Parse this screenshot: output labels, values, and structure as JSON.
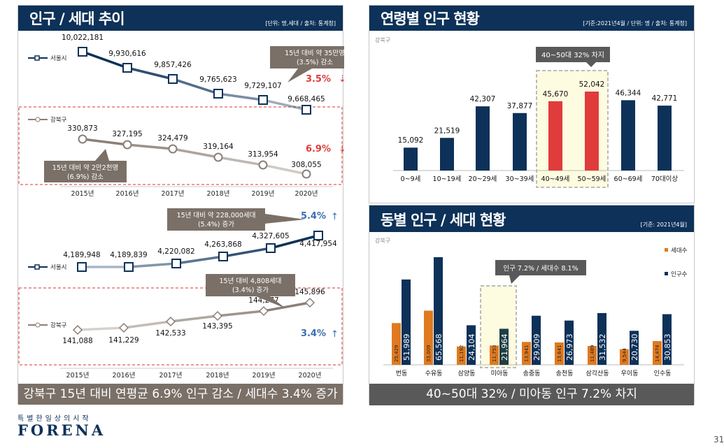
{
  "left_panel": {
    "title": "인구 / 세대 추이",
    "subtitle": "[단위: 명,세대 / 출처: 통계청]",
    "banner": "강북구 15년 대비 연평균 6.9% 인구 감소 / 세대수 3.4% 증가"
  },
  "top_right_panel": {
    "title": "연령별 인구 현황",
    "subtitle": "[기준:2021년4월 / 단위: 명 / 출처: 통계청]"
  },
  "bottom_right_panel": {
    "title": "동별 인구 / 세대 현황",
    "subtitle": "[기준: 2021년4월]",
    "banner": "40~50대 32% / 미아동 인구 7.2% 차지"
  },
  "logo": {
    "tagline": "특별한일상의시작",
    "name": "FORENA"
  },
  "page_number": "31",
  "colors": {
    "navy": "#0d3158",
    "taupe": "#8a7f76",
    "red": "#e03c3c",
    "orange": "#e07a1f",
    "highlight": "#fdfbe0"
  },
  "chart_data": [
    {
      "type": "line",
      "title": "인구 추이",
      "categories": [
        "2015년",
        "2016년",
        "2017년",
        "2018년",
        "2019년",
        "2020년"
      ],
      "series": [
        {
          "name": "서울시",
          "values": [
            10022181,
            9930616,
            9857426,
            9765623,
            9729107,
            9668465
          ]
        },
        {
          "name": "강북구",
          "values": [
            330873,
            327195,
            324479,
            319164,
            313954,
            308055
          ]
        }
      ],
      "annotations": [
        "15년 대비 약 35만명\n(3.5%) 감소",
        "3.5%",
        "15년 대비 약 2만2천명\n(6.9%) 감소",
        "6.9%"
      ],
      "arrows": [
        "down",
        "down"
      ]
    },
    {
      "type": "line",
      "title": "세대 추이",
      "categories": [
        "2015년",
        "2016년",
        "2017년",
        "2018년",
        "2019년",
        "2020년"
      ],
      "series": [
        {
          "name": "서울시",
          "values": [
            4189948,
            4189839,
            4220082,
            4263868,
            4327605,
            4417954
          ]
        },
        {
          "name": "강북구",
          "values": [
            141088,
            141229,
            142533,
            143395,
            144277,
            145896
          ]
        }
      ],
      "annotations": [
        "15년 대비 약 228,000세대\n(5.4%) 증가",
        "5.4%",
        "15년 대비 4,808세대\n(3.4%) 증가",
        "3.4%"
      ],
      "arrows": [
        "up",
        "up"
      ]
    },
    {
      "type": "bar",
      "label": "강북구",
      "categories": [
        "0~9세",
        "10~19세",
        "20~29세",
        "30~39세",
        "40~49세",
        "50~59세",
        "60~69세",
        "70대이상"
      ],
      "values": [
        15092,
        21519,
        42307,
        37877,
        45670,
        52042,
        46344,
        42771
      ],
      "highlighted": [
        "40~49세",
        "50~59세"
      ],
      "annotation": "40~50대 32% 차지"
    },
    {
      "type": "bar",
      "label": "강북구",
      "categories": [
        "번동",
        "수유동",
        "삼양동",
        "미아동",
        "송중동",
        "송천동",
        "삼각산동",
        "우이동",
        "인수동"
      ],
      "series": [
        {
          "name": "세대수",
          "values": [
            25429,
            33009,
            11192,
            11753,
            13941,
            13641,
            11489,
            9544,
            14474
          ]
        },
        {
          "name": "인구수",
          "values": [
            51989,
            65568,
            24104,
            21964,
            29909,
            26973,
            31532,
            20730,
            30853
          ]
        }
      ],
      "highlighted": [
        "미아동"
      ],
      "annotation": "인구 7.2% / 세대수 8.1%",
      "legend": "right"
    }
  ]
}
